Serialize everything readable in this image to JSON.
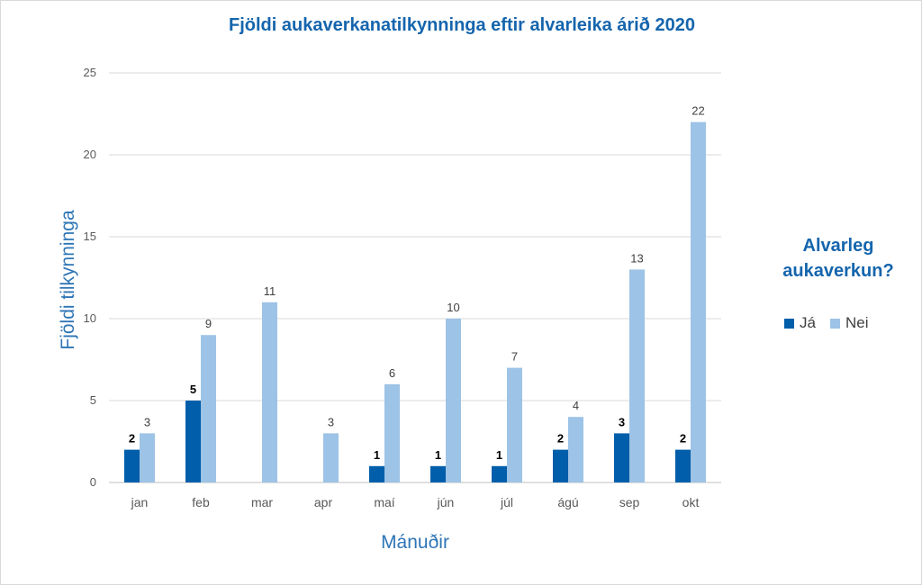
{
  "colors": {
    "series_ja": "#005eaa",
    "series_nei": "#9dc3e6",
    "title": "#1565ad",
    "axis_label": "#2e75b6",
    "grid": "#d9d9d9"
  },
  "chart_data": {
    "type": "bar",
    "title": "Fjöldi aukaverkanatilkynninga eftir alvarleika árið 2020",
    "xlabel": "Mánuðir",
    "ylabel": "Fjöldi tilkynninga",
    "ylim": [
      0,
      25
    ],
    "yticks": [
      "0",
      "5",
      "10",
      "15",
      "20",
      "25"
    ],
    "grid": true,
    "legend_title": [
      "Alvarleg",
      "aukaverkun?"
    ],
    "legend_position": "right",
    "categories": [
      "jan",
      "feb",
      "mar",
      "apr",
      "maí",
      "jún",
      "júl",
      "ágú",
      "sep",
      "okt"
    ],
    "series": [
      {
        "name": "Já",
        "values": [
          2,
          5,
          null,
          null,
          1,
          1,
          1,
          2,
          3,
          2
        ]
      },
      {
        "name": "Nei",
        "values": [
          3,
          9,
          11,
          3,
          6,
          10,
          7,
          4,
          13,
          22
        ]
      }
    ]
  }
}
